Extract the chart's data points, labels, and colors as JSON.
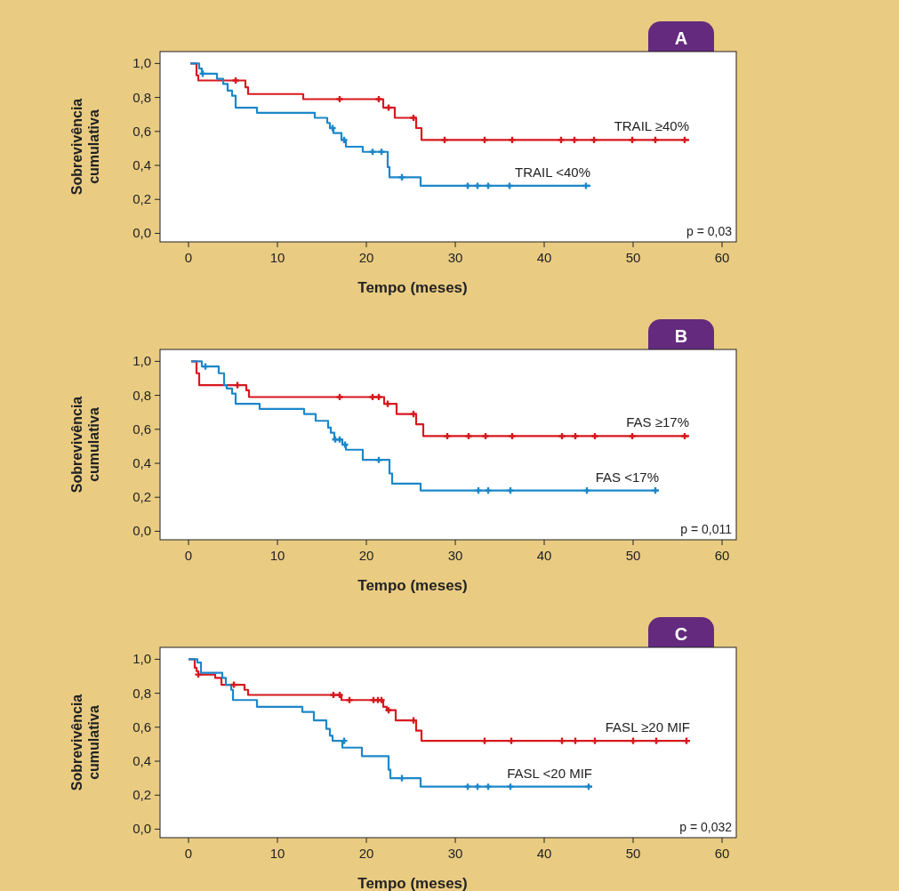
{
  "chart_data": [
    {
      "type": "step",
      "title": "A",
      "xlabel": "Tempo (meses)",
      "ylabel": "Sobrevivência cumulativa",
      "annotations": [
        "p = 0,03"
      ],
      "xlim": [
        -3.2,
        61.6
      ],
      "ylim": [
        -0.05,
        1.07
      ],
      "xticks": [
        0,
        10,
        20,
        30,
        40,
        50,
        60
      ],
      "yticks": [
        {
          "value": 0,
          "label": "0,0"
        },
        {
          "value": 0.2,
          "label": "0,2"
        },
        {
          "value": 0.4,
          "label": "0,4"
        },
        {
          "value": 0.6,
          "label": "0,6"
        },
        {
          "value": 0.8,
          "label": "0,8"
        },
        {
          "value": 1,
          "label": "1,0"
        }
      ],
      "series": [
        {
          "name": "TRAIL ≥40%",
          "color": "#d7191f",
          "x": [
            0.2,
            0.9,
            1.1,
            6.4,
            6.7,
            12.9,
            21.9,
            23.2,
            25.6,
            26.2,
            56.3
          ],
          "values": [
            1,
            0.93,
            0.9,
            0.86,
            0.82,
            0.79,
            0.74,
            0.68,
            0.62,
            0.55,
            0.55
          ]
        },
        {
          "name": "TRAIL <40%",
          "color": "#1c87c9",
          "x": [
            0.2,
            1.2,
            1.5,
            3.2,
            3.9,
            4.4,
            4.9,
            5.3,
            7.7,
            14.2,
            15.6,
            15.9,
            16.3,
            17.2,
            17.7,
            19.6,
            22.4,
            22.6,
            26.1,
            45.2
          ],
          "values": [
            1,
            0.97,
            0.94,
            0.91,
            0.88,
            0.84,
            0.81,
            0.74,
            0.71,
            0.68,
            0.65,
            0.62,
            0.59,
            0.55,
            0.51,
            0.48,
            0.39,
            0.33,
            0.28,
            0.28
          ]
        },
        {
          "type": "scatter",
          "marker": "cross",
          "color": "#d7191f",
          "x": [
            5.3,
            17.0,
            21.4,
            22.5,
            25.3,
            28.8,
            33.3,
            36.4,
            41.9,
            43.4,
            45.6,
            49.9,
            52.5,
            55.8
          ],
          "values": [
            0.9,
            0.79,
            0.79,
            0.74,
            0.68,
            0.55,
            0.55,
            0.55,
            0.55,
            0.55,
            0.55,
            0.55,
            0.55,
            0.55
          ]
        },
        {
          "type": "scatter",
          "marker": "cross",
          "color": "#1c87c9",
          "x": [
            1.6,
            16.2,
            17.5,
            20.7,
            21.7,
            24.0,
            31.4,
            32.5,
            33.7,
            36.1,
            44.7
          ],
          "values": [
            0.94,
            0.62,
            0.55,
            0.48,
            0.48,
            0.33,
            0.28,
            0.28,
            0.28,
            0.28,
            0.28
          ]
        }
      ]
    },
    {
      "type": "step",
      "title": "B",
      "xlabel": "Tempo (meses)",
      "ylabel": "Sobrevivência cumulativa",
      "annotations": [
        "p = 0,011"
      ],
      "xlim": [
        -3.2,
        61.6
      ],
      "ylim": [
        -0.05,
        1.07
      ],
      "xticks": [
        0,
        10,
        20,
        30,
        40,
        50,
        60
      ],
      "yticks": [
        {
          "value": 0,
          "label": "0,0"
        },
        {
          "value": 0.2,
          "label": "0,2"
        },
        {
          "value": 0.4,
          "label": "0,4"
        },
        {
          "value": 0.6,
          "label": "0,6"
        },
        {
          "value": 0.8,
          "label": "0,8"
        },
        {
          "value": 1,
          "label": "1,0"
        }
      ],
      "series": [
        {
          "name": "FAS ≥17%",
          "color": "#d7191f",
          "x": [
            0.3,
            0.9,
            1.2,
            6.5,
            6.8,
            22.0,
            23.4,
            25.6,
            26.4,
            56.3
          ],
          "values": [
            1,
            0.93,
            0.86,
            0.83,
            0.79,
            0.75,
            0.69,
            0.63,
            0.56,
            0.56
          ]
        },
        {
          "name": "FAS <17%",
          "color": "#1c87c9",
          "x": [
            0.3,
            1.5,
            3.4,
            4.0,
            4.3,
            4.9,
            5.3,
            8.0,
            13.0,
            14.3,
            15.7,
            16.0,
            16.4,
            17.3,
            17.7,
            19.6,
            22.6,
            22.9,
            26.1,
            52.9
          ],
          "values": [
            1,
            0.97,
            0.93,
            0.86,
            0.84,
            0.81,
            0.75,
            0.72,
            0.69,
            0.65,
            0.61,
            0.58,
            0.54,
            0.51,
            0.48,
            0.42,
            0.34,
            0.28,
            0.24,
            0.24
          ]
        },
        {
          "type": "scatter",
          "marker": "cross",
          "color": "#d7191f",
          "x": [
            5.5,
            17.0,
            20.7,
            21.4,
            22.4,
            25.3,
            29.1,
            31.5,
            33.4,
            36.4,
            42.0,
            43.5,
            45.7,
            49.9,
            55.8
          ],
          "values": [
            0.86,
            0.79,
            0.79,
            0.79,
            0.75,
            0.69,
            0.56,
            0.56,
            0.56,
            0.56,
            0.56,
            0.56,
            0.56,
            0.56,
            0.56
          ]
        },
        {
          "type": "scatter",
          "marker": "cross",
          "color": "#1c87c9",
          "x": [
            1.9,
            16.5,
            17.0,
            17.6,
            21.4,
            32.6,
            33.7,
            36.2,
            44.8,
            52.5
          ],
          "values": [
            0.97,
            0.54,
            0.54,
            0.51,
            0.42,
            0.24,
            0.24,
            0.24,
            0.24,
            0.24
          ]
        }
      ]
    },
    {
      "type": "step",
      "title": "C",
      "xlabel": "Tempo (meses)",
      "ylabel": "Sobrevivência cumulativa",
      "annotations": [
        "p = 0,032"
      ],
      "xlim": [
        -3.2,
        61.6
      ],
      "ylim": [
        -0.05,
        1.07
      ],
      "xticks": [
        0,
        10,
        20,
        30,
        40,
        50,
        60
      ],
      "yticks": [
        {
          "value": 0,
          "label": "0,0"
        },
        {
          "value": 0.2,
          "label": "0,2"
        },
        {
          "value": 0.4,
          "label": "0,4"
        },
        {
          "value": 0.6,
          "label": "0,6"
        },
        {
          "value": 0.8,
          "label": "0,8"
        },
        {
          "value": 1,
          "label": "1,0"
        }
      ],
      "series": [
        {
          "name": "FASL ≥20 MIF",
          "color": "#d7191f",
          "x": [
            0,
            0.7,
            0.9,
            1.1,
            3.0,
            3.7,
            6.3,
            6.7,
            17.2,
            21.9,
            22.3,
            23.3,
            25.6,
            26.2,
            56.4
          ],
          "values": [
            1,
            0.95,
            0.93,
            0.91,
            0.89,
            0.85,
            0.82,
            0.79,
            0.76,
            0.72,
            0.7,
            0.64,
            0.58,
            0.52,
            0.52
          ]
        },
        {
          "name": "FASL <20 MIF",
          "color": "#1c87c9",
          "x": [
            0,
            1.0,
            1.4,
            3.8,
            4.2,
            4.8,
            5.0,
            7.7,
            12.8,
            14.1,
            15.5,
            15.9,
            16.2,
            17.3,
            19.5,
            22.5,
            22.7,
            26.1,
            45.4
          ],
          "values": [
            1,
            0.98,
            0.92,
            0.89,
            0.85,
            0.82,
            0.76,
            0.72,
            0.69,
            0.64,
            0.59,
            0.55,
            0.52,
            0.48,
            0.43,
            0.35,
            0.3,
            0.25,
            0.25
          ]
        },
        {
          "type": "scatter",
          "marker": "cross",
          "color": "#d7191f",
          "x": [
            1.1,
            5.1,
            16.3,
            17.0,
            18.1,
            20.8,
            21.3,
            21.7,
            22.5,
            25.3,
            33.3,
            36.3,
            42.0,
            43.5,
            45.7,
            50.0,
            52.6,
            56.0
          ],
          "values": [
            0.91,
            0.85,
            0.79,
            0.79,
            0.76,
            0.76,
            0.76,
            0.76,
            0.7,
            0.64,
            0.52,
            0.52,
            0.52,
            0.52,
            0.52,
            0.52,
            0.52,
            0.52
          ]
        },
        {
          "type": "scatter",
          "marker": "cross",
          "color": "#1c87c9",
          "x": [
            17.5,
            24.0,
            31.4,
            32.5,
            33.7,
            36.2,
            45.0
          ],
          "values": [
            0.52,
            0.3,
            0.25,
            0.25,
            0.25,
            0.25,
            0.25
          ]
        }
      ]
    }
  ]
}
